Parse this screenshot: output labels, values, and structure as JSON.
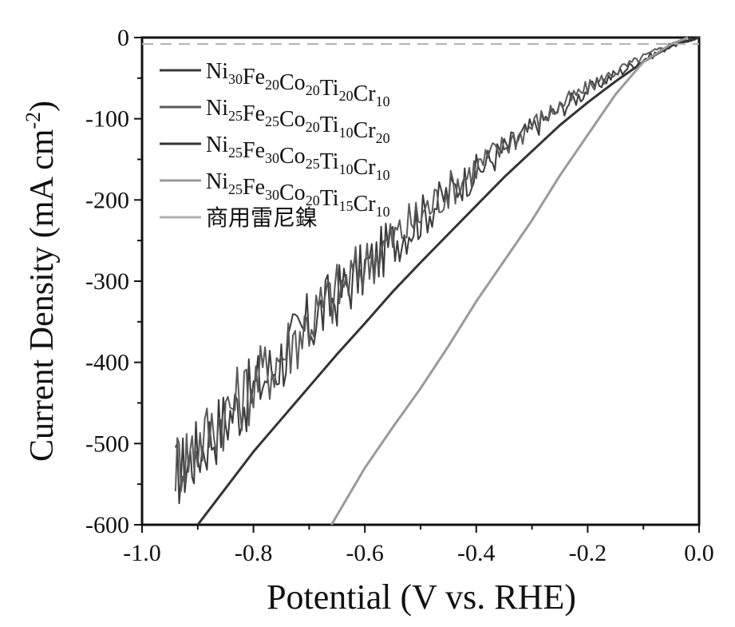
{
  "chart_data": {
    "type": "line",
    "xlabel": "Potential (V vs. RHE)",
    "ylabel": "Current Density (mA cm",
    "ylabel_sup": "-2",
    "ylabel_close": ")",
    "xlim": [
      -1.0,
      0.0
    ],
    "ylim": [
      -600,
      0
    ],
    "x_ticks": [
      -1.0,
      -0.8,
      -0.6,
      -0.4,
      -0.2,
      0.0
    ],
    "x_tick_labels": [
      "-1.0",
      "-0.8",
      "-0.6",
      "-0.4",
      "-0.2",
      "0.0"
    ],
    "y_ticks": [
      0,
      -100,
      -200,
      -300,
      -400,
      -500,
      -600
    ],
    "y_tick_labels": [
      "0",
      "-100",
      "-200",
      "-300",
      "-400",
      "-500",
      "-600"
    ],
    "grid": false,
    "legend_position": "top-left",
    "series": [
      {
        "name": "Ni30Fe20Co20Ti20Cr10",
        "label_parts": [
          [
            "Ni",
            "30"
          ],
          [
            "Fe",
            "20"
          ],
          [
            "Co",
            "20"
          ],
          [
            "Ti",
            "20"
          ],
          [
            "Cr",
            "10"
          ]
        ],
        "color": "#3a3a3a",
        "style": "noisy",
        "x": [
          -0.94,
          -0.9,
          -0.85,
          -0.8,
          -0.75,
          -0.7,
          -0.65,
          -0.6,
          -0.55,
          -0.5,
          -0.45,
          -0.4,
          -0.35,
          -0.3,
          -0.25,
          -0.2,
          -0.15,
          -0.1,
          -0.05,
          0.0
        ],
        "y": [
          -540,
          -510,
          -470,
          -435,
          -395,
          -355,
          -318,
          -285,
          -252,
          -222,
          -192,
          -165,
          -138,
          -112,
          -88,
          -65,
          -45,
          -27,
          -10,
          0
        ]
      },
      {
        "name": "Ni25Fe25Co20Ti10Cr20",
        "label_parts": [
          [
            "Ni",
            "25"
          ],
          [
            "Fe",
            "25"
          ],
          [
            "Co",
            "20"
          ],
          [
            "Ti",
            "10"
          ],
          [
            "Cr",
            "20"
          ]
        ],
        "color": "#5a5a5a",
        "style": "noisy",
        "x": [
          -0.94,
          -0.9,
          -0.85,
          -0.8,
          -0.75,
          -0.7,
          -0.65,
          -0.6,
          -0.55,
          -0.5,
          -0.45,
          -0.4,
          -0.35,
          -0.3,
          -0.25,
          -0.2,
          -0.15,
          -0.1,
          -0.05,
          0.0
        ],
        "y": [
          -525,
          -500,
          -462,
          -428,
          -390,
          -350,
          -313,
          -280,
          -248,
          -218,
          -188,
          -160,
          -134,
          -108,
          -84,
          -62,
          -42,
          -24,
          -8,
          0
        ]
      },
      {
        "name": "Ni25Fe30Co25Ti10Cr10",
        "label_parts": [
          [
            "Ni",
            "25"
          ],
          [
            "Fe",
            "30"
          ],
          [
            "Co",
            "25"
          ],
          [
            "Ti",
            "10"
          ],
          [
            "Cr",
            "10"
          ]
        ],
        "color": "#333333",
        "style": "smooth",
        "x": [
          -0.9,
          -0.85,
          -0.8,
          -0.75,
          -0.7,
          -0.65,
          -0.6,
          -0.55,
          -0.5,
          -0.45,
          -0.4,
          -0.35,
          -0.3,
          -0.25,
          -0.2,
          -0.15,
          -0.1,
          -0.05,
          0.0
        ],
        "y": [
          -600,
          -555,
          -510,
          -470,
          -430,
          -390,
          -352,
          -313,
          -277,
          -242,
          -207,
          -172,
          -140,
          -108,
          -80,
          -54,
          -30,
          -10,
          0
        ]
      },
      {
        "name": "Ni25Fe30Co20Ti15Cr10",
        "label_parts": [
          [
            "Ni",
            "25"
          ],
          [
            "Fe",
            "30"
          ],
          [
            "Co",
            "20"
          ],
          [
            "Ti",
            "15"
          ],
          [
            "Cr",
            "10"
          ]
        ],
        "color": "#9a9a9a",
        "style": "smooth",
        "x": [
          -0.66,
          -0.6,
          -0.55,
          -0.5,
          -0.45,
          -0.4,
          -0.35,
          -0.3,
          -0.25,
          -0.2,
          -0.15,
          -0.1,
          -0.05,
          -0.02
        ],
        "y": [
          -600,
          -530,
          -480,
          -432,
          -380,
          -325,
          -275,
          -225,
          -170,
          -120,
          -70,
          -30,
          -8,
          0
        ]
      },
      {
        "name": "商用雷尼鎳",
        "label_parts": [
          [
            "商用雷尼鎳",
            ""
          ]
        ],
        "color": "#b0b0b0",
        "style": "dashed",
        "x": [
          -1.0,
          0.0
        ],
        "y": [
          -8,
          -8
        ]
      }
    ]
  }
}
